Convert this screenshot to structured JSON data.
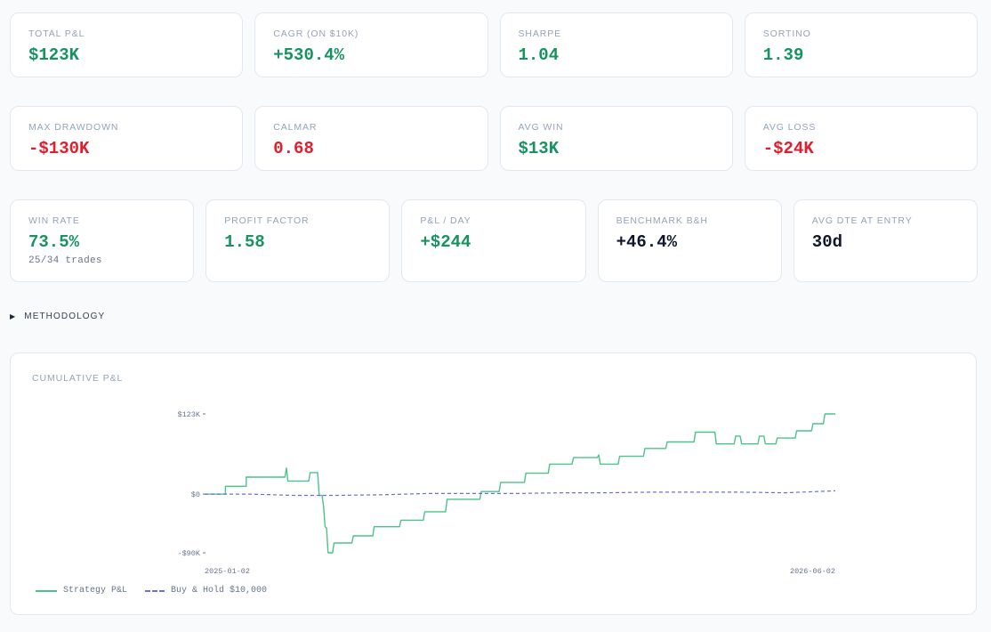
{
  "metrics_row1": [
    {
      "label": "TOTAL P&L",
      "value": "$123K",
      "tone": "pos"
    },
    {
      "label": "CAGR (ON $10K)",
      "value": "+530.4%",
      "tone": "pos"
    },
    {
      "label": "SHARPE",
      "value": "1.04",
      "tone": "pos"
    },
    {
      "label": "SORTINO",
      "value": "1.39",
      "tone": "pos"
    }
  ],
  "metrics_row2": [
    {
      "label": "MAX DRAWDOWN",
      "value": "-$130K",
      "tone": "neg"
    },
    {
      "label": "CALMAR",
      "value": "0.68",
      "tone": "neg"
    },
    {
      "label": "AVG WIN",
      "value": "$13K",
      "tone": "pos"
    },
    {
      "label": "AVG LOSS",
      "value": "-$24K",
      "tone": "neg"
    }
  ],
  "metrics_row3": [
    {
      "label": "WIN RATE",
      "value": "73.5%",
      "tone": "pos",
      "sub": "25/34 trades"
    },
    {
      "label": "PROFIT FACTOR",
      "value": "1.58",
      "tone": "pos"
    },
    {
      "label": "P&L / DAY",
      "value": "+$244",
      "tone": "pos"
    },
    {
      "label": "BENCHMARK B&H",
      "value": "+46.4%",
      "tone": "neu"
    },
    {
      "label": "AVG DTE AT ENTRY",
      "value": "30d",
      "tone": "neu"
    }
  ],
  "methodology": {
    "label": "METHODOLOGY"
  },
  "colors": {
    "positive": "#16935f",
    "negative": "#e11d2e",
    "strategy": "#4cc38a",
    "benchmark": "#6a6fd8"
  },
  "chart_data": {
    "type": "line",
    "title": "CUMULATIVE P&L",
    "y_tick_labels": [
      "$123K",
      "$0",
      "-$90K"
    ],
    "y_tick_values": [
      123,
      0,
      -90
    ],
    "ylim": [
      -90,
      123
    ],
    "x_tick_labels": [
      "2025-01-02",
      "2026-06-02"
    ],
    "x": [
      0,
      1,
      2,
      3,
      4,
      5,
      6,
      7,
      8,
      9,
      10,
      11,
      12,
      13,
      14,
      15,
      16,
      17,
      18,
      19,
      20,
      21,
      22,
      23,
      24,
      25,
      26,
      27,
      28,
      29,
      30,
      31,
      32,
      33,
      34,
      35,
      36,
      37,
      38,
      39,
      40,
      41,
      42,
      43,
      44,
      45,
      46,
      47,
      48,
      49,
      50,
      51,
      52,
      53,
      54,
      55,
      56,
      57,
      58,
      59,
      60,
      61,
      62,
      63,
      64,
      65,
      66,
      67,
      68,
      69,
      70,
      71,
      72,
      73,
      74,
      75,
      76,
      77,
      78,
      79,
      80,
      81,
      82,
      83,
      84,
      85,
      86,
      87,
      88,
      89,
      90,
      91,
      92,
      93,
      94,
      95,
      96,
      97,
      98,
      99,
      100,
      101,
      102,
      103,
      104,
      105,
      106,
      107,
      108,
      109,
      110,
      111,
      112,
      113,
      114,
      115,
      116,
      117,
      118,
      119,
      120,
      121,
      122,
      123,
      124,
      125,
      126,
      127,
      128,
      129,
      130,
      131,
      132,
      133,
      134,
      135,
      136,
      137,
      138,
      139,
      140,
      141,
      142,
      143,
      144,
      145,
      146,
      147,
      148,
      149,
      150,
      151,
      152,
      153,
      154,
      155,
      156,
      157,
      158,
      159,
      160,
      161,
      162,
      163,
      164,
      165,
      166,
      167,
      168,
      169,
      170,
      171,
      172,
      173,
      174,
      175,
      176,
      177,
      178,
      179,
      180,
      181,
      182,
      183,
      184,
      185,
      186,
      187,
      188,
      189,
      190,
      191,
      192,
      193,
      194,
      195,
      196,
      197,
      198,
      199,
      200,
      201,
      202,
      203,
      204,
      205,
      206,
      207,
      208,
      209,
      210,
      211,
      212,
      213,
      214,
      215,
      216,
      217,
      218,
      219,
      220,
      221,
      222,
      223,
      224,
      225,
      226,
      227,
      228,
      229,
      230,
      231,
      232,
      233,
      234,
      235,
      236,
      237,
      238,
      239,
      240,
      241,
      242,
      243,
      244,
      245,
      246,
      247,
      248,
      249,
      250,
      251,
      252,
      253,
      254,
      255,
      256,
      257,
      258,
      259,
      260,
      261,
      262,
      263,
      264,
      265,
      266,
      267,
      268,
      269,
      270,
      271,
      272,
      273,
      274,
      275,
      276,
      277,
      278,
      279,
      280,
      281,
      282,
      283,
      284,
      285,
      286,
      287,
      288,
      289,
      290,
      291,
      292,
      293,
      294,
      295,
      296,
      297,
      298,
      299,
      300,
      301,
      302,
      303,
      304,
      305,
      306,
      307,
      308,
      309,
      310,
      311,
      312,
      313,
      314,
      315,
      316,
      317,
      318,
      319,
      320,
      321,
      322,
      323,
      324,
      325,
      326,
      327,
      328,
      329,
      330,
      331,
      332,
      333,
      334,
      335,
      336,
      337,
      338,
      339,
      340,
      341,
      342,
      343,
      344,
      345,
      346,
      347,
      348,
      349,
      350,
      351,
      352,
      353,
      354,
      355,
      356,
      357,
      358,
      359,
      360,
      361,
      362,
      363,
      364,
      365,
      366,
      367,
      368,
      369,
      370,
      371,
      372,
      373,
      374,
      375,
      376,
      377,
      378,
      379,
      380,
      381,
      382,
      383,
      384,
      385,
      386,
      387,
      388,
      389,
      390,
      391,
      392,
      393,
      394,
      395,
      396,
      397,
      398,
      399,
      400,
      401,
      402,
      403,
      404,
      405,
      406,
      407,
      408,
      409,
      410,
      411,
      412,
      413,
      414,
      415,
      416,
      417,
      418,
      419,
      420,
      421,
      422,
      423,
      424,
      425,
      426,
      427,
      428,
      429,
      430,
      431,
      432,
      433,
      434,
      435,
      436,
      437,
      438,
      439,
      440,
      441,
      442,
      443,
      444,
      445,
      446,
      447,
      448,
      449,
      450,
      451,
      452,
      453,
      454,
      455,
      456,
      457,
      458,
      459,
      460,
      461,
      462,
      463,
      464,
      465,
      466,
      467,
      468,
      469,
      470,
      471,
      472,
      473,
      474,
      475,
      476,
      477,
      478,
      479,
      480,
      481,
      482,
      483,
      484,
      485,
      486,
      487,
      488,
      489,
      490,
      491,
      492,
      493,
      494,
      495,
      496,
      497,
      498,
      499,
      500,
      501,
      502,
      503,
      504,
      505,
      506,
      507,
      508,
      509,
      510,
      511,
      512,
      513,
      514,
      515,
      516
    ],
    "series": [
      {
        "name": "Strategy P&L",
        "steps": [
          [
            0,
            0
          ],
          [
            28,
            0
          ],
          [
            28,
            12
          ],
          [
            56,
            12
          ],
          [
            56,
            26
          ],
          [
            108,
            26
          ],
          [
            110,
            40
          ],
          [
            112,
            20
          ],
          [
            140,
            20
          ],
          [
            142,
            33
          ],
          [
            152,
            33
          ],
          [
            154,
            -2
          ],
          [
            158,
            -2
          ],
          [
            160,
            -20
          ],
          [
            162,
            -50
          ],
          [
            164,
            -52
          ],
          [
            166,
            -90
          ],
          [
            172,
            -90
          ],
          [
            174,
            -75
          ],
          [
            198,
            -75
          ],
          [
            200,
            -64
          ],
          [
            226,
            -64
          ],
          [
            228,
            -50
          ],
          [
            262,
            -50
          ],
          [
            264,
            -40
          ],
          [
            294,
            -40
          ],
          [
            296,
            -27
          ],
          [
            324,
            -27
          ],
          [
            326,
            -8
          ],
          [
            370,
            -8
          ],
          [
            372,
            4
          ],
          [
            396,
            4
          ],
          [
            398,
            18
          ],
          [
            430,
            18
          ],
          [
            432,
            32
          ],
          [
            462,
            32
          ],
          [
            464,
            46
          ],
          [
            494,
            46
          ],
          [
            496,
            56
          ],
          [
            528,
            56
          ],
          [
            530,
            60
          ],
          [
            532,
            46
          ],
          [
            556,
            46
          ],
          [
            558,
            58
          ],
          [
            590,
            58
          ],
          [
            592,
            70
          ],
          [
            620,
            70
          ],
          [
            622,
            80
          ],
          [
            658,
            80
          ],
          [
            660,
            95
          ],
          [
            686,
            95
          ],
          [
            688,
            77
          ],
          [
            712,
            77
          ],
          [
            714,
            89
          ],
          [
            720,
            89
          ],
          [
            722,
            77
          ],
          [
            744,
            77
          ],
          [
            746,
            89
          ],
          [
            752,
            89
          ],
          [
            754,
            77
          ],
          [
            768,
            77
          ],
          [
            770,
            86
          ],
          [
            794,
            86
          ],
          [
            796,
            97
          ],
          [
            816,
            97
          ],
          [
            818,
            108
          ],
          [
            832,
            108
          ],
          [
            834,
            123
          ],
          [
            848,
            123
          ]
        ]
      },
      {
        "name": "Buy & Hold $10,000",
        "steps": [
          [
            0,
            0
          ],
          [
            60,
            0
          ],
          [
            120,
            -2
          ],
          [
            180,
            -2
          ],
          [
            240,
            -1
          ],
          [
            300,
            1
          ],
          [
            360,
            1
          ],
          [
            420,
            1
          ],
          [
            480,
            2
          ],
          [
            540,
            2
          ],
          [
            600,
            3
          ],
          [
            660,
            3
          ],
          [
            720,
            3
          ],
          [
            780,
            2
          ],
          [
            848,
            5
          ]
        ]
      }
    ]
  },
  "legend": {
    "strategy": "Strategy P&L",
    "benchmark": "Buy & Hold $10,000"
  }
}
